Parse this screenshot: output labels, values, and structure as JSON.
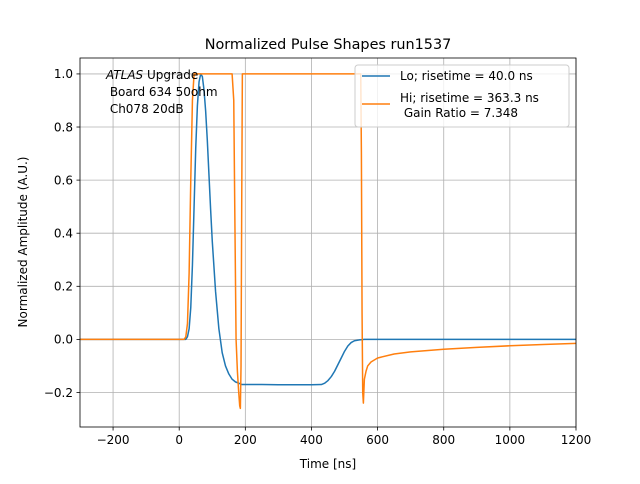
{
  "chart_data": {
    "type": "line",
    "title": "Normalized Pulse Shapes run1537",
    "xlabel": "Time [ns]",
    "ylabel": "Normalized Amplitude (A.U.)",
    "xlim": [
      -300,
      1200
    ],
    "ylim": [
      -0.33,
      1.06
    ],
    "xticks": [
      -200,
      0,
      200,
      400,
      600,
      800,
      1000,
      1200
    ],
    "xtick_labels": [
      "−200",
      "0",
      "200",
      "400",
      "600",
      "800",
      "1000",
      "1200"
    ],
    "yticks": [
      -0.2,
      0.0,
      0.2,
      0.4,
      0.6,
      0.8,
      1.0
    ],
    "ytick_labels": [
      "−0.2",
      "0.0",
      "0.2",
      "0.4",
      "0.6",
      "0.8",
      "1.0"
    ],
    "grid": true,
    "legend_position": "top-right",
    "annotation": {
      "italic": "ATLAS",
      "line1_rest": " Upgrade",
      "line2": " Board 634 50ohm",
      "line3": " Ch078 20dB"
    },
    "series": [
      {
        "name": "Lo; risetime = 40.0 ns",
        "color": "#1f77b4",
        "x": [
          -300,
          20,
          25,
          30,
          35,
          40,
          45,
          50,
          55,
          60,
          65,
          70,
          75,
          80,
          85,
          90,
          95,
          100,
          110,
          120,
          130,
          140,
          150,
          160,
          170,
          180,
          190,
          200,
          220,
          250,
          300,
          350,
          400,
          430,
          440,
          450,
          460,
          470,
          480,
          490,
          500,
          510,
          520,
          530,
          545,
          560,
          600,
          800,
          1000,
          1200
        ],
        "y": [
          0.0,
          0.0,
          0.01,
          0.04,
          0.12,
          0.28,
          0.5,
          0.72,
          0.88,
          0.97,
          1.0,
          0.99,
          0.94,
          0.86,
          0.75,
          0.62,
          0.49,
          0.37,
          0.18,
          0.04,
          -0.05,
          -0.1,
          -0.13,
          -0.15,
          -0.16,
          -0.165,
          -0.17,
          -0.17,
          -0.17,
          -0.17,
          -0.171,
          -0.171,
          -0.171,
          -0.17,
          -0.165,
          -0.155,
          -0.14,
          -0.12,
          -0.095,
          -0.07,
          -0.045,
          -0.025,
          -0.012,
          -0.005,
          -0.002,
          0.0,
          0.0,
          0.0,
          0.0,
          0.0
        ]
      },
      {
        "name": "Hi; risetime = 363.3 ns\n Gain Ratio = 7.348",
        "color": "#ff7f0e",
        "x": [
          -300,
          15,
          20,
          25,
          30,
          35,
          40,
          45,
          50,
          160,
          165,
          168,
          172,
          176,
          180,
          183,
          185,
          187,
          189,
          191,
          193,
          196,
          200,
          300,
          400,
          500,
          549,
          551,
          553,
          555,
          557,
          560,
          565,
          570,
          580,
          600,
          650,
          700,
          800,
          900,
          1000,
          1100,
          1200
        ],
        "y": [
          0.0,
          0.0,
          0.01,
          0.06,
          0.25,
          0.6,
          0.9,
          1.0,
          1.0,
          1.0,
          0.9,
          0.5,
          0.0,
          -0.12,
          -0.2,
          -0.25,
          -0.26,
          -0.1,
          0.5,
          1.0,
          1.0,
          1.0,
          1.0,
          1.0,
          1.0,
          1.0,
          1.0,
          0.7,
          0.1,
          -0.2,
          -0.24,
          -0.15,
          -0.12,
          -0.1,
          -0.085,
          -0.07,
          -0.055,
          -0.047,
          -0.037,
          -0.03,
          -0.024,
          -0.019,
          -0.015
        ]
      }
    ]
  }
}
